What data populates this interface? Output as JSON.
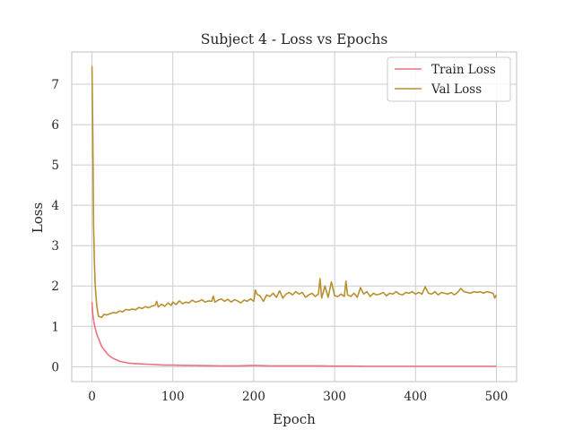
{
  "chart_data": {
    "type": "line",
    "title": "Subject 4 - Loss vs Epochs",
    "xlabel": "Epoch",
    "ylabel": "Loss",
    "xlim": [
      -25,
      525
    ],
    "ylim": [
      -0.37,
      7.8
    ],
    "xticks": [
      0,
      100,
      200,
      300,
      400,
      500
    ],
    "yticks": [
      0,
      1,
      2,
      3,
      4,
      5,
      6,
      7
    ],
    "grid": true,
    "legend": "top-right",
    "series": [
      {
        "name": "Train Loss",
        "color": "#f0707f",
        "x": [
          0,
          1,
          2,
          3,
          4,
          5,
          6,
          8,
          10,
          12,
          15,
          18,
          21,
          25,
          30,
          35,
          40,
          45,
          50,
          60,
          70,
          80,
          90,
          100,
          120,
          140,
          160,
          180,
          200,
          220,
          240,
          260,
          280,
          300,
          320,
          340,
          360,
          380,
          400,
          420,
          440,
          460,
          480,
          500
        ],
        "y": [
          1.6,
          1.3,
          1.15,
          1.05,
          0.95,
          0.88,
          0.8,
          0.7,
          0.6,
          0.5,
          0.42,
          0.34,
          0.28,
          0.22,
          0.17,
          0.13,
          0.11,
          0.09,
          0.08,
          0.07,
          0.06,
          0.05,
          0.04,
          0.04,
          0.03,
          0.025,
          0.02,
          0.02,
          0.03,
          0.02,
          0.02,
          0.02,
          0.02,
          0.015,
          0.015,
          0.01,
          0.01,
          0.01,
          0.01,
          0.01,
          0.01,
          0.01,
          0.01,
          0.01
        ]
      },
      {
        "name": "Val Loss",
        "color": "#b8912f",
        "x": [
          0,
          1,
          2,
          3,
          4,
          6,
          8,
          12,
          15,
          18,
          22,
          26,
          30,
          34,
          38,
          42,
          46,
          50,
          54,
          58,
          62,
          66,
          70,
          74,
          78,
          80,
          82,
          86,
          90,
          94,
          98,
          100,
          104,
          108,
          112,
          116,
          120,
          124,
          128,
          132,
          136,
          140,
          144,
          148,
          150,
          152,
          156,
          160,
          164,
          168,
          172,
          176,
          180,
          184,
          188,
          192,
          196,
          200,
          202,
          204,
          208,
          212,
          216,
          220,
          224,
          228,
          232,
          236,
          240,
          244,
          248,
          252,
          256,
          260,
          264,
          268,
          272,
          276,
          280,
          282,
          284,
          288,
          292,
          296,
          300,
          304,
          308,
          312,
          314,
          316,
          320,
          324,
          328,
          332,
          336,
          340,
          344,
          348,
          352,
          356,
          360,
          364,
          368,
          372,
          376,
          380,
          384,
          388,
          392,
          396,
          400,
          404,
          408,
          412,
          416,
          420,
          424,
          428,
          432,
          436,
          440,
          444,
          448,
          452,
          456,
          460,
          464,
          468,
          472,
          476,
          480,
          484,
          488,
          492,
          496,
          498,
          500
        ],
        "y": [
          7.45,
          5.8,
          3.5,
          2.6,
          2.0,
          1.5,
          1.25,
          1.22,
          1.3,
          1.28,
          1.31,
          1.34,
          1.33,
          1.38,
          1.36,
          1.42,
          1.4,
          1.43,
          1.41,
          1.47,
          1.44,
          1.49,
          1.46,
          1.5,
          1.52,
          1.62,
          1.48,
          1.55,
          1.5,
          1.58,
          1.52,
          1.6,
          1.54,
          1.63,
          1.56,
          1.6,
          1.58,
          1.65,
          1.6,
          1.62,
          1.66,
          1.6,
          1.63,
          1.62,
          1.75,
          1.6,
          1.65,
          1.68,
          1.62,
          1.67,
          1.6,
          1.66,
          1.63,
          1.58,
          1.65,
          1.62,
          1.68,
          1.62,
          1.9,
          1.8,
          1.75,
          1.62,
          1.78,
          1.74,
          1.82,
          1.72,
          1.88,
          1.7,
          1.8,
          1.84,
          1.78,
          1.86,
          1.8,
          1.84,
          1.72,
          1.78,
          1.82,
          1.74,
          1.8,
          2.18,
          1.7,
          2.0,
          1.72,
          2.1,
          1.76,
          1.74,
          1.8,
          1.74,
          2.12,
          1.78,
          1.74,
          1.82,
          1.72,
          1.96,
          1.8,
          1.86,
          1.74,
          1.82,
          1.78,
          1.8,
          1.84,
          1.76,
          1.82,
          1.8,
          1.86,
          1.8,
          1.78,
          1.84,
          1.82,
          1.86,
          1.8,
          1.84,
          1.8,
          1.98,
          1.82,
          1.8,
          1.86,
          1.78,
          1.84,
          1.82,
          1.8,
          1.84,
          1.78,
          1.84,
          1.94,
          1.86,
          1.84,
          1.82,
          1.86,
          1.84,
          1.86,
          1.82,
          1.86,
          1.84,
          1.82,
          1.7,
          1.78
        ]
      }
    ]
  }
}
